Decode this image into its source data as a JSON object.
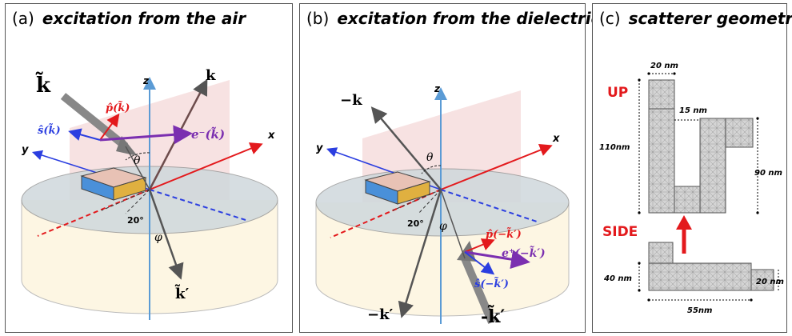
{
  "panels": {
    "a": {
      "label": "(a)",
      "title": "excitation from the air"
    },
    "b": {
      "label": "(b)",
      "title": "excitation from the dielectric"
    },
    "c": {
      "label": "(c)",
      "title": "scatterer geometry"
    }
  },
  "panel_a": {
    "k_tilde": "k̃",
    "k": "k",
    "z": "z",
    "x": "x",
    "y": "y",
    "p": "p̂(k̃)",
    "s": "ŝ(k̃)",
    "e": "e⁻(k̃)",
    "theta": "θ",
    "angle20": "20°",
    "phi": "φ",
    "k_prime": "k̃′"
  },
  "panel_b": {
    "minus_k": "−k",
    "z": "z",
    "x": "x",
    "y": "y",
    "theta": "θ",
    "angle20": "20°",
    "phi": "φ",
    "p": "p̂(−k̃′)",
    "e": "e⁺(−k̃′)",
    "s": "ŝ(−k̃′)",
    "minus_k_prime": "−k′",
    "minus_k_tilde_prime": "-k̃′"
  },
  "panel_c": {
    "dim_20": "20 nm",
    "up": "UP",
    "dim_15": "15 nm",
    "dim_110": "110nm",
    "dim_90": "90 nm",
    "side": "SIDE",
    "dim_40": "40 nm",
    "dim_20b": "20 nm",
    "dim_55": "55nm"
  },
  "colors": {
    "red": "#e3191c",
    "blue": "#2b3ee0",
    "purple": "#7b2fb0",
    "zaxis": "#5b9bd5",
    "gray": "#7f7f7f"
  }
}
